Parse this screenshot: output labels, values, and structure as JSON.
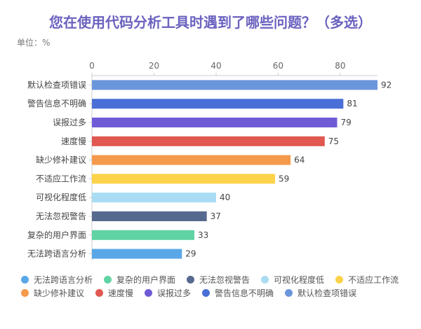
{
  "chart_data": {
    "type": "bar",
    "orientation": "horizontal",
    "title": "您在使用代码分析工具时遇到了哪些问题？（多选）",
    "unit_label": "单位：%",
    "categories": [
      "默认检查项错误",
      "警告信息不明确",
      "误报过多",
      "速度慢",
      "缺少修补建议",
      "不适应工作流",
      "可视化程度低",
      "无法忽视警告",
      "复杂的用户界面",
      "无法跨语言分析"
    ],
    "values": [
      92,
      81,
      79,
      75,
      64,
      59,
      40,
      37,
      33,
      29
    ],
    "colors": [
      "#6b96dc",
      "#4a6fd6",
      "#6f5bd6",
      "#e0584f",
      "#f59a4b",
      "#fcd34a",
      "#a9dcf3",
      "#56698f",
      "#5fd3a3",
      "#5aa7e8"
    ],
    "xticks": [
      0,
      20,
      40,
      60,
      80
    ],
    "xlim": [
      0,
      92
    ],
    "axis_position": "top",
    "grid": false,
    "legend_placement": "bottom",
    "legend_order": [
      "无法跨语言分析",
      "复杂的用户界面",
      "无法忽视警告",
      "可视化程度低",
      "不适应工作流",
      "缺少修补建议",
      "速度慢",
      "误报过多",
      "警告信息不明确",
      "默认检查项错误"
    ],
    "title_color": "#6b62bf"
  }
}
